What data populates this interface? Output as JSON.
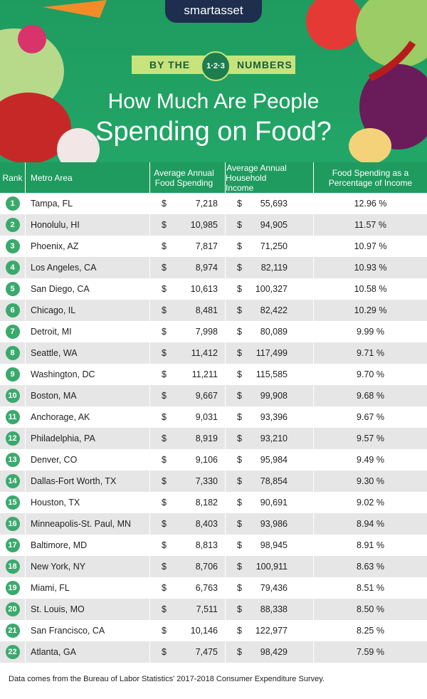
{
  "header": {
    "brand": "smartasset",
    "banner_left": "BY THE",
    "banner_badge": "1·2·3",
    "banner_right": "NUMBERS",
    "title_line1": "How Much Are People",
    "title_line2": "Spending on Food?"
  },
  "table": {
    "currency": "$",
    "columns": [
      [
        "Rank"
      ],
      [
        "Metro Area"
      ],
      [
        "Average Annual",
        "Food Spending"
      ],
      [
        "Average Annual",
        "Household Income"
      ],
      [
        "Food Spending as a",
        "Percentage of Income"
      ]
    ],
    "rows": [
      [
        "1",
        "Tampa, FL",
        "7,218",
        "55,693",
        "12.96 %"
      ],
      [
        "2",
        "Honolulu, HI",
        "10,985",
        "94,905",
        "11.57 %"
      ],
      [
        "3",
        "Phoenix, AZ",
        "7,817",
        "71,250",
        "10.97 %"
      ],
      [
        "4",
        "Los Angeles, CA",
        "8,974",
        "82,119",
        "10.93 %"
      ],
      [
        "5",
        "San Diego, CA",
        "10,613",
        "100,327",
        "10.58 %"
      ],
      [
        "6",
        "Chicago, IL",
        "8,481",
        "82,422",
        "10.29 %"
      ],
      [
        "7",
        "Detroit, MI",
        "7,998",
        "80,089",
        "9.99 %"
      ],
      [
        "8",
        "Seattle, WA",
        "11,412",
        "117,499",
        "9.71 %"
      ],
      [
        "9",
        "Washington, DC",
        "11,211",
        "115,585",
        "9.70 %"
      ],
      [
        "10",
        "Boston, MA",
        "9,667",
        "99,908",
        "9.68 %"
      ],
      [
        "11",
        "Anchorage, AK",
        "9,031",
        "93,396",
        "9.67 %"
      ],
      [
        "12",
        "Philadelphia, PA",
        "8,919",
        "93,210",
        "9.57 %"
      ],
      [
        "13",
        "Denver, CO",
        "9,106",
        "95,984",
        "9.49 %"
      ],
      [
        "14",
        "Dallas-Fort Worth, TX",
        "7,330",
        "78,854",
        "9.30 %"
      ],
      [
        "15",
        "Houston, TX",
        "8,182",
        "90,691",
        "9.02 %"
      ],
      [
        "16",
        "Minneapolis-St. Paul, MN",
        "8,403",
        "93,986",
        "8.94 %"
      ],
      [
        "17",
        "Baltimore, MD",
        "8,813",
        "98,945",
        "8.91 %"
      ],
      [
        "18",
        "New York, NY",
        "8,706",
        "100,911",
        "8.63 %"
      ],
      [
        "19",
        "Miami, FL",
        "6,763",
        "79,436",
        "8.51 %"
      ],
      [
        "20",
        "St. Louis, MO",
        "7,511",
        "88,338",
        "8.50 %"
      ],
      [
        "21",
        "San Francisco, CA",
        "10,146",
        "122,977",
        "8.25 %"
      ],
      [
        "22",
        "Atlanta, GA",
        "7,475",
        "98,429",
        "7.59 %"
      ]
    ]
  },
  "footer": {
    "note": "Data comes from the Bureau of Labor Statistics' 2017-2018 Consumer Expenditure Survey."
  }
}
